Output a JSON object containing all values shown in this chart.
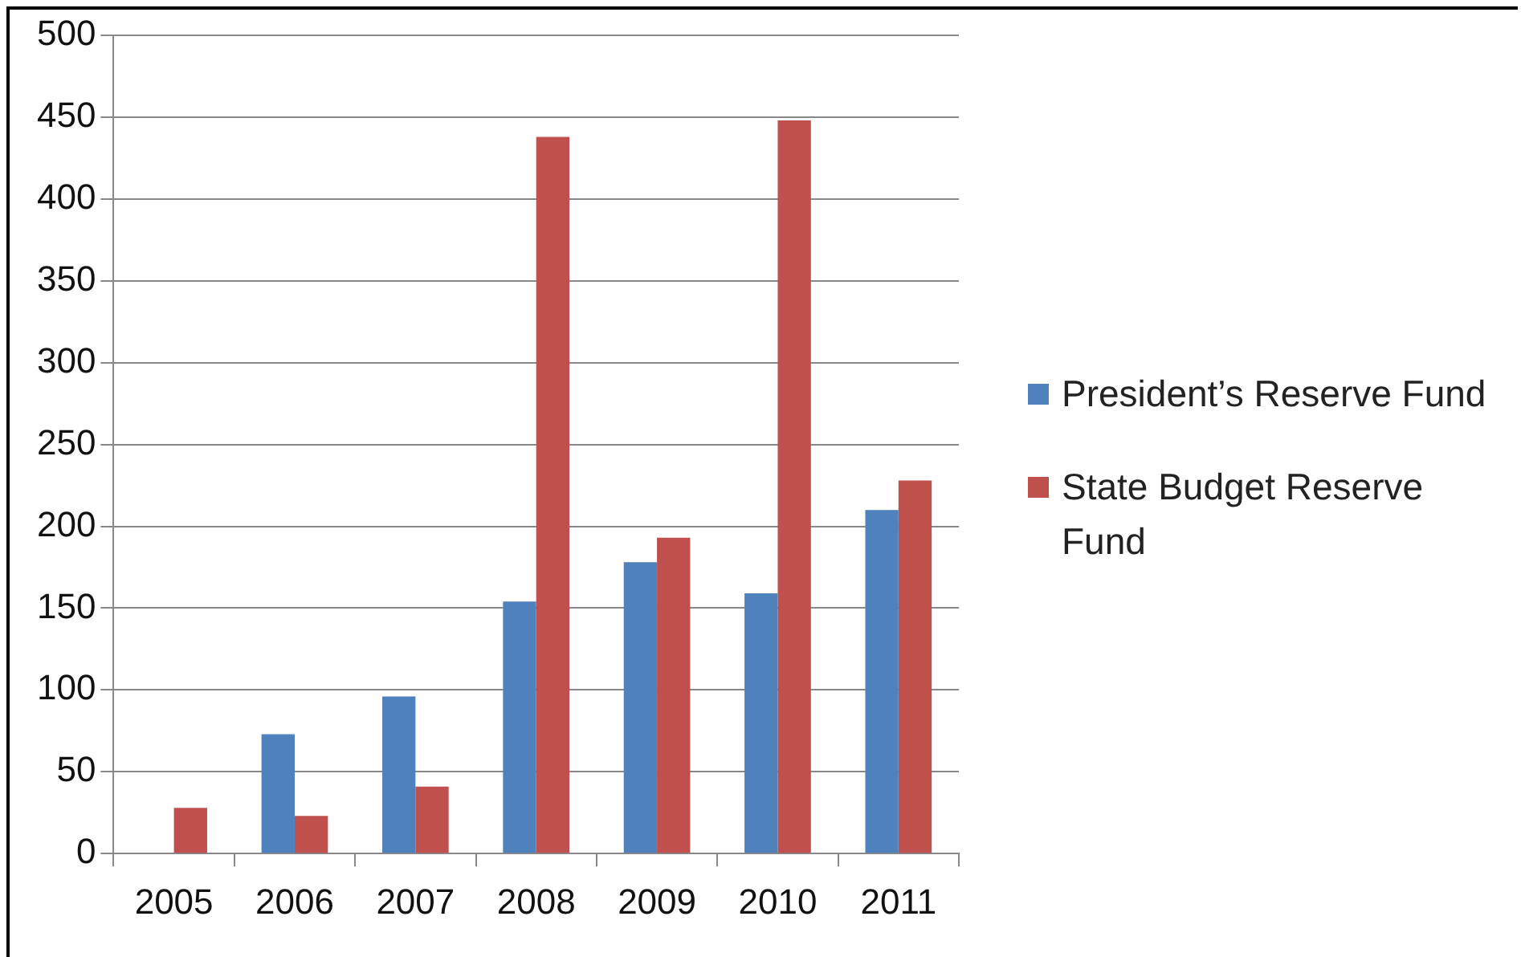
{
  "chart_data": {
    "type": "bar",
    "categories": [
      "2005",
      "2006",
      "2007",
      "2008",
      "2009",
      "2010",
      "2011"
    ],
    "series": [
      {
        "name": "President’s Reserve Fund",
        "color": "#4f81bd",
        "values": [
          null,
          73,
          96,
          154,
          178,
          159,
          210
        ]
      },
      {
        "name": "State Budget Reserve Fund",
        "color": "#c0504d",
        "values": [
          28,
          23,
          41,
          438,
          193,
          448,
          228
        ]
      }
    ],
    "ylim": [
      0,
      500
    ],
    "yticks": [
      0,
      50,
      100,
      150,
      200,
      250,
      300,
      350,
      400,
      450,
      500
    ],
    "grid": "y",
    "legend": "right"
  }
}
